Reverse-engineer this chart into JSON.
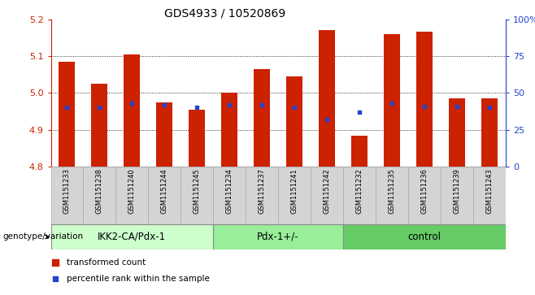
{
  "title": "GDS4933 / 10520869",
  "samples": [
    "GSM1151233",
    "GSM1151238",
    "GSM1151240",
    "GSM1151244",
    "GSM1151245",
    "GSM1151234",
    "GSM1151237",
    "GSM1151241",
    "GSM1151242",
    "GSM1151232",
    "GSM1151235",
    "GSM1151236",
    "GSM1151239",
    "GSM1151243"
  ],
  "groups": [
    {
      "label": "IKK2-CA/Pdx-1",
      "color": "#ccffcc",
      "indices": [
        0,
        1,
        2,
        3,
        4
      ]
    },
    {
      "label": "Pdx-1+/-",
      "color": "#99ee99",
      "indices": [
        5,
        6,
        7,
        8
      ]
    },
    {
      "label": "control",
      "color": "#66cc66",
      "indices": [
        9,
        10,
        11,
        12,
        13
      ]
    }
  ],
  "bar_bottom": 4.8,
  "transformed_counts": [
    5.085,
    5.025,
    5.105,
    4.975,
    4.955,
    5.0,
    5.065,
    5.045,
    5.17,
    4.885,
    5.16,
    5.165,
    4.985,
    4.985
  ],
  "percentile_ranks": [
    40,
    40,
    43,
    42,
    40,
    42,
    42,
    40,
    32,
    37,
    43,
    41,
    41,
    40
  ],
  "ylim_left": [
    4.8,
    5.2
  ],
  "ylim_right": [
    0,
    100
  ],
  "yticks_left": [
    4.8,
    4.9,
    5.0,
    5.1,
    5.2
  ],
  "yticks_right": [
    0,
    25,
    50,
    75,
    100
  ],
  "ytick_labels_right": [
    "0",
    "25",
    "50",
    "75",
    "100%"
  ],
  "bar_color": "#cc2200",
  "dot_color": "#2244cc",
  "grid_color": "#000000",
  "bar_width": 0.5,
  "xlabel_group": "genotype/variation",
  "legend_items": [
    "transformed count",
    "percentile rank within the sample"
  ],
  "legend_colors": [
    "#cc2200",
    "#2244cc"
  ],
  "tick_label_color_left": "#cc2200",
  "tick_label_color_right": "#2244cc",
  "title_fontsize": 10,
  "tick_fontsize": 8,
  "group_label_fontsize": 8.5,
  "legend_fontsize": 7.5,
  "sample_fontsize": 6.0
}
